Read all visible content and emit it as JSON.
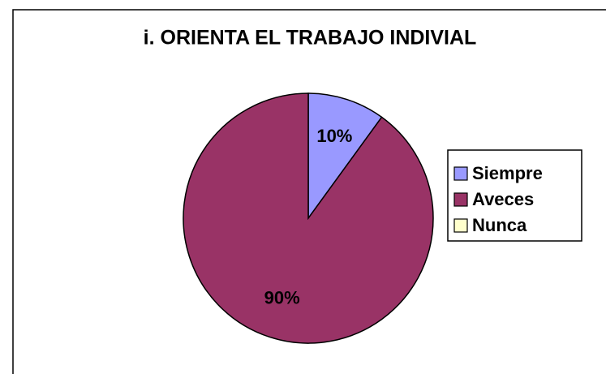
{
  "chart_data": {
    "type": "pie",
    "title": "i. ORIENTA EL TRABAJO INDIVIAL",
    "categories": [
      "Siempre",
      "Aveces",
      "Nunca"
    ],
    "values": [
      10,
      90,
      0
    ],
    "value_labels": [
      "10%",
      "90%",
      null
    ],
    "colors": [
      "#9999ff",
      "#993366",
      "#ffffcc"
    ],
    "legend": "right"
  }
}
